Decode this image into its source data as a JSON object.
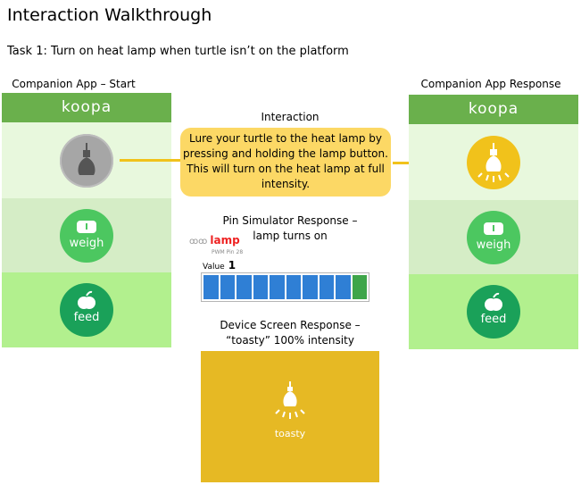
{
  "page_title": "Interaction Walkthrough",
  "task": "Task 1: Turn on heat lamp when turtle isn’t on the platform",
  "interaction": {
    "caption": "Interaction",
    "description": "Lure your turtle to the heat lamp by pressing and holding the lamp button. This will turn on the heat lamp at full intensity."
  },
  "companion_start": {
    "caption": "Companion App – Start",
    "app_name": "koopa",
    "buttons": [
      {
        "name": "lamp",
        "icon": "lightbulb-icon",
        "state": "off",
        "color": "#a6a6a6"
      },
      {
        "name": "weigh",
        "label": "weigh",
        "icon": "scale-icon",
        "color": "#4cc760"
      },
      {
        "name": "feed",
        "label": "feed",
        "icon": "apple-icon",
        "color": "#1aa159"
      }
    ]
  },
  "companion_response": {
    "caption": "Companion App Response",
    "app_name": "koopa",
    "buttons": [
      {
        "name": "lamp",
        "icon": "lightbulb-on-icon",
        "state": "on",
        "color": "#f1c21b"
      },
      {
        "name": "weigh",
        "label": "weigh",
        "icon": "scale-icon",
        "color": "#4cc760"
      },
      {
        "name": "feed",
        "label": "feed",
        "icon": "apple-icon",
        "color": "#1aa159"
      }
    ]
  },
  "pin_simulator": {
    "caption_line1": "Pin Simulator Response –",
    "caption_line2": "lamp turns on",
    "pin_name": "lamp",
    "pin_sub": "PWM Pin 28",
    "value_label": "Value",
    "value": "1",
    "level_fraction": 1.0
  },
  "device_screen": {
    "caption_line1": "Device Screen Response –",
    "caption_line2": "“toasty” 100% intensity",
    "label": "toasty",
    "color": "#e6b924"
  },
  "colors": {
    "header_green": "#6ab04c",
    "accent_yellow": "#f1c21b",
    "bubble_yellow": "#fcd865"
  }
}
